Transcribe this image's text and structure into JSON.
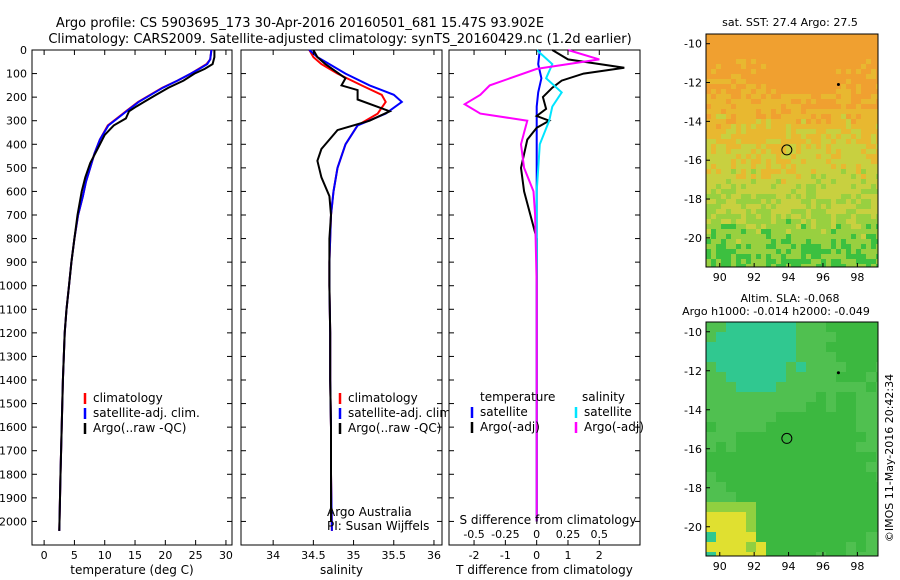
{
  "header": {
    "line1": "Argo profile: CS 5903695_173 30-Apr-2016 20160501_681 15.47S 93.902E",
    "line2": "Climatology: CARS2009. Satellite-adjusted climatology: synTS_20160429.nc (1.2d earlier)"
  },
  "side_label": "©IMOS 11-May-2016 20:42:34",
  "colors": {
    "climatology": "#ff0000",
    "satellite": "#0000ff",
    "argo": "#000000",
    "s_sat": "#00e5ff",
    "s_argo": "#ff00ff"
  },
  "chart_data": [
    {
      "id": "temperature",
      "type": "line",
      "xlabel": "temperature (deg C)",
      "ylabel": "",
      "xlim": [
        -2,
        31
      ],
      "ylim": [
        2100,
        0
      ],
      "xticks": [
        0,
        5,
        10,
        15,
        20,
        25,
        30
      ],
      "yticks": [
        0,
        100,
        200,
        300,
        400,
        500,
        600,
        700,
        800,
        900,
        1000,
        1100,
        1200,
        1300,
        1400,
        1500,
        1600,
        1700,
        1800,
        1900,
        2000
      ],
      "legend": [
        "climatology",
        "satellite-adj. clim.",
        "Argo(..raw -QC)"
      ],
      "series": [
        {
          "name": "climatology",
          "color": "#ff0000",
          "x": [
            27.6,
            27.4,
            26.8,
            25.5,
            24.2,
            22,
            19.5,
            17.5,
            15.5,
            14,
            12.5,
            10.5,
            9.2,
            8.3,
            7.6,
            6.9,
            6.4,
            5.6,
            5,
            4.5,
            4.1,
            3.7,
            3.4,
            3.1,
            2.9,
            2.7,
            2.5
          ],
          "y": [
            0,
            40,
            60,
            80,
            100,
            130,
            160,
            190,
            220,
            250,
            280,
            320,
            380,
            440,
            500,
            560,
            620,
            700,
            800,
            900,
            1000,
            1100,
            1200,
            1400,
            1600,
            1800,
            2040
          ]
        },
        {
          "name": "satellite-adj. clim.",
          "color": "#0000ff",
          "x": [
            27.6,
            27.4,
            26.9,
            25.6,
            24.2,
            22,
            19.6,
            17.6,
            15.6,
            14.1,
            12.6,
            10.6,
            9.2,
            8.3,
            7.6,
            6.9,
            6.4,
            5.6,
            5,
            4.5,
            4.1,
            3.7,
            3.4,
            3.1,
            2.9,
            2.7,
            2.5
          ],
          "y": [
            0,
            40,
            60,
            80,
            100,
            130,
            160,
            190,
            220,
            250,
            280,
            320,
            380,
            440,
            500,
            560,
            620,
            700,
            800,
            900,
            1000,
            1100,
            1200,
            1400,
            1600,
            1800,
            2040
          ]
        },
        {
          "name": "Argo(..raw -QC)",
          "color": "#000000",
          "x": [
            28.1,
            28.1,
            27.8,
            26.5,
            24.8,
            23,
            20.5,
            18.5,
            16.5,
            15.2,
            14,
            13.5,
            11.5,
            10,
            8.8,
            7.6,
            6.8,
            6.2,
            5.5,
            5,
            4.5,
            4.1,
            3.7,
            3.4,
            3.1,
            2.9,
            2.7,
            2.5
          ],
          "y": [
            0,
            30,
            60,
            80,
            100,
            130,
            160,
            190,
            220,
            240,
            260,
            290,
            320,
            360,
            420,
            480,
            540,
            600,
            700,
            800,
            900,
            1000,
            1100,
            1200,
            1400,
            1600,
            1800,
            2040
          ]
        }
      ]
    },
    {
      "id": "salinity",
      "type": "line",
      "xlabel": "salinity",
      "ylabel": "",
      "xlim": [
        33.6,
        36.1
      ],
      "ylim": [
        2100,
        0
      ],
      "xticks": [
        34,
        34.5,
        35,
        35.5,
        36
      ],
      "legend": [
        "climatology",
        "satellite-adj. clim.",
        "Argo(..raw -QC)"
      ],
      "annotation": [
        "Argo Australia",
        "PI: Susan Wijffels"
      ],
      "series": [
        {
          "name": "climatology",
          "color": "#ff0000",
          "x": [
            34.45,
            34.5,
            34.6,
            34.8,
            35.1,
            35.35,
            35.4,
            35.3,
            35.05,
            34.9,
            34.8,
            34.75,
            34.72,
            34.71,
            34.7,
            34.7,
            34.71,
            34.71,
            34.72,
            34.72,
            34.73
          ],
          "y": [
            0,
            30,
            60,
            100,
            150,
            190,
            220,
            270,
            320,
            400,
            500,
            600,
            700,
            800,
            900,
            1000,
            1200,
            1400,
            1600,
            1800,
            2040
          ]
        },
        {
          "name": "satellite-adj. clim.",
          "color": "#0000ff",
          "x": [
            34.45,
            34.55,
            34.7,
            34.9,
            35.2,
            35.5,
            35.6,
            35.4,
            35.05,
            34.9,
            34.8,
            34.75,
            34.72,
            34.71,
            34.7,
            34.7,
            34.71,
            34.71,
            34.72,
            34.72,
            34.73
          ],
          "y": [
            0,
            30,
            60,
            100,
            150,
            190,
            220,
            270,
            320,
            400,
            500,
            600,
            700,
            800,
            900,
            1000,
            1200,
            1400,
            1600,
            1800,
            2040
          ]
        },
        {
          "name": "Argo(..raw -QC)",
          "color": "#000000",
          "x": [
            34.5,
            34.55,
            34.65,
            34.9,
            34.85,
            35.05,
            35.05,
            35.45,
            35.2,
            34.8,
            34.7,
            34.6,
            34.55,
            34.6,
            34.7,
            34.72,
            34.7,
            34.7,
            34.71,
            34.71,
            34.72,
            34.72
          ],
          "y": [
            0,
            30,
            60,
            120,
            150,
            170,
            210,
            260,
            300,
            340,
            380,
            420,
            470,
            540,
            620,
            700,
            800,
            1000,
            1200,
            1400,
            1600,
            2000
          ]
        }
      ]
    },
    {
      "id": "difference",
      "type": "line",
      "xlabel": "T difference from climatology",
      "xlabel_top": "S difference from climatology",
      "ylabel": "",
      "xlim": [
        -2.8,
        3.3
      ],
      "ylim": [
        2100,
        0
      ],
      "xticks": [
        -2,
        -1,
        0,
        1,
        2
      ],
      "xticks_top": [
        -0.5,
        -0.25,
        0,
        0.25,
        0.5
      ],
      "legend_left": [
        "temperature",
        "satellite",
        "Argo(-adj)"
      ],
      "legend_right": [
        "salinity",
        "satellite",
        "Argo(-adj)"
      ],
      "series": [
        {
          "name": "T satellite",
          "color": "#0000ff",
          "x": [
            0.1,
            0.05,
            0.15,
            0.05,
            0,
            0,
            0,
            0,
            0,
            0,
            0,
            0
          ],
          "y": [
            0,
            60,
            120,
            180,
            240,
            300,
            400,
            600,
            800,
            1000,
            1400,
            2000
          ]
        },
        {
          "name": "T Argo(-adj)",
          "color": "#000000",
          "x": [
            0.5,
            1,
            2.8,
            1.5,
            0.8,
            0.5,
            0.2,
            0.3,
            0,
            0.4,
            0,
            -0.3,
            -0.5,
            -0.4,
            -0.2,
            0,
            0,
            0,
            0
          ],
          "y": [
            0,
            40,
            75,
            100,
            130,
            160,
            200,
            250,
            280,
            300,
            330,
            380,
            500,
            600,
            700,
            800,
            1000,
            1500,
            2000
          ]
        },
        {
          "name": "S satellite",
          "color": "#00e5ff",
          "x": [
            0,
            0.5,
            0.3,
            0.8,
            0.5,
            0.4,
            0.1,
            0,
            0,
            0,
            0,
            0
          ],
          "y": [
            0,
            60,
            120,
            180,
            240,
            300,
            400,
            600,
            800,
            1000,
            1400,
            2000
          ]
        },
        {
          "name": "S Argo(-adj)",
          "color": "#ff00ff",
          "x": [
            1,
            2,
            0,
            -1.5,
            -1.8,
            -2.3,
            -1.8,
            -0.3,
            -0.4,
            -0.5,
            -0.4,
            -0.1,
            -0.05,
            0,
            0
          ],
          "y": [
            0,
            40,
            80,
            150,
            190,
            230,
            270,
            300,
            350,
            400,
            500,
            600,
            700,
            1000,
            2000
          ]
        }
      ]
    },
    {
      "id": "sst_map",
      "type": "heatmap",
      "title": "sat. SST: 27.4 Argo: 27.5",
      "xlim": [
        89.2,
        99.2
      ],
      "ylim": [
        -21.5,
        -9.5
      ],
      "xticks": [
        90,
        92,
        94,
        96,
        98
      ],
      "yticks": [
        -10,
        -12,
        -14,
        -16,
        -18,
        -20
      ],
      "marker": {
        "lon": 93.9,
        "lat": -15.47
      },
      "palette": [
        "#f0a030",
        "#e8b830",
        "#c8d040",
        "#98d040",
        "#3cc040",
        "#30b8a8"
      ]
    },
    {
      "id": "sla_map",
      "type": "heatmap",
      "title": "Altim. SLA: -0.068",
      "subtitle": "Argo h1000: -0.014 h2000: -0.049",
      "xlim": [
        89.2,
        99.2
      ],
      "ylim": [
        -21.5,
        -9.5
      ],
      "xticks": [
        90,
        92,
        94,
        96,
        98
      ],
      "yticks": [
        -10,
        -12,
        -14,
        -16,
        -18,
        -20
      ],
      "marker": {
        "lon": 93.9,
        "lat": -15.47
      },
      "palette": [
        "#3cb840",
        "#50c050",
        "#30c890",
        "#90d040",
        "#e0e030"
      ]
    }
  ]
}
